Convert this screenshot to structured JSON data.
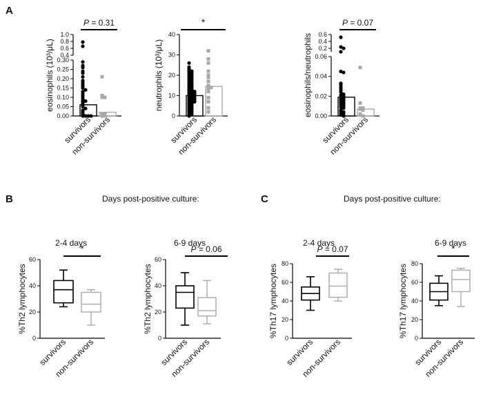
{
  "panels": {
    "A": "A",
    "B": "B",
    "C": "C"
  },
  "headers": {
    "B": "Days post-positive culture:",
    "C": "Days post-positive culture:"
  },
  "colors": {
    "survivors": "#000000",
    "non_survivors": "#a8a8a8"
  },
  "chart_data": [
    {
      "id": "A1",
      "type": "bar",
      "title": "",
      "ylabel": "eosinophils (10³/μL)",
      "significance": {
        "prefix": "P",
        "text": " = 0.31"
      },
      "categories": [
        "survivors",
        "non-survivors"
      ],
      "bar_means": [
        0.06,
        0.02
      ],
      "axis_segments": [
        {
          "ylim": [
            0,
            0.3
          ],
          "ticks": [
            "0.00",
            "0.05",
            "0.10",
            "0.15",
            "0.20",
            "0.25",
            "0.30"
          ]
        },
        {
          "ylim": [
            0.4,
            1.0
          ],
          "ticks": [
            "0.4",
            "0.6",
            "0.8",
            "1.0"
          ]
        }
      ],
      "points": {
        "survivors": [
          0.78,
          0.66,
          0.29,
          0.27,
          0.26,
          0.24,
          0.23,
          0.21,
          0.19,
          0.18,
          0.17,
          0.16,
          0.15,
          0.14,
          0.13,
          0.12,
          0.11,
          0.1,
          0.09,
          0.08,
          0.08,
          0.07,
          0.06,
          0.05,
          0.04,
          0.03,
          0.02,
          0.01,
          0.0,
          0.0,
          0.0,
          0.0
        ],
        "non-survivors": [
          0.21,
          0.11,
          0.1,
          0.1,
          0.01,
          0.01,
          0.0,
          0.0
        ]
      }
    },
    {
      "id": "A2",
      "type": "bar",
      "title": "",
      "ylabel": "neutrophils (10³/μL)",
      "significance": {
        "prefix": "",
        "text": "*"
      },
      "categories": [
        "survivors",
        "non-survivors"
      ],
      "bar_means": [
        10,
        14.5
      ],
      "ylim": [
        0,
        40
      ],
      "ticks": [
        "0",
        "10",
        "20",
        "30",
        "40"
      ],
      "points": {
        "survivors": [
          26,
          24,
          23,
          22,
          22,
          21,
          21,
          20,
          20,
          19,
          19,
          18,
          18,
          17,
          17,
          16,
          16,
          15,
          15,
          14,
          14,
          13,
          13,
          12,
          12,
          12,
          11,
          11,
          11,
          10,
          10,
          10,
          9,
          9,
          9,
          8,
          8,
          8,
          7,
          7,
          7,
          6,
          6,
          5,
          5,
          4,
          4,
          3,
          3,
          2,
          2,
          1,
          1,
          0
        ],
        "non-survivors": [
          32,
          28,
          26,
          22,
          20,
          19,
          17,
          15,
          14,
          14,
          13,
          12,
          9,
          7,
          4,
          2
        ]
      }
    },
    {
      "id": "A3",
      "type": "bar",
      "title": "",
      "ylabel": "eosinophils/neutrophils",
      "significance": {
        "prefix": "P",
        "text": " = 0.07"
      },
      "categories": [
        "survivors",
        "non-survivors"
      ],
      "bar_means": [
        0.019,
        0.007
      ],
      "axis_segments": [
        {
          "ylim": [
            0,
            0.06
          ],
          "ticks": [
            "0.00",
            "0.02",
            "0.04",
            "0.06"
          ]
        },
        {
          "ylim": [
            0.1,
            0.6
          ],
          "ticks": [
            "0.2",
            "0.4",
            "0.6"
          ]
        }
      ],
      "points": {
        "survivors": [
          0.52,
          0.24,
          0.2,
          0.061,
          0.045,
          0.044,
          0.033,
          0.032,
          0.03,
          0.028,
          0.026,
          0.024,
          0.022,
          0.021,
          0.02,
          0.019,
          0.018,
          0.017,
          0.016,
          0.015,
          0.014,
          0.013,
          0.012,
          0.011,
          0.01,
          0.009,
          0.008,
          0.006,
          0.005,
          0.004,
          0.003,
          0.002,
          0.001,
          0.0
        ],
        "non-survivors": [
          0.049,
          0.013,
          0.008,
          0.008,
          0.007,
          0.006,
          0.002,
          0.001,
          0.0
        ]
      }
    },
    {
      "id": "B1",
      "type": "box",
      "title": "2-4 days",
      "ylabel": "%Th2 lymphocytes",
      "significance": {
        "prefix": "",
        "text": "*"
      },
      "categories": [
        "survivors",
        "non-survivors"
      ],
      "ylim": [
        0,
        60
      ],
      "ticks": [
        "0",
        "20",
        "40",
        "60"
      ],
      "boxes": [
        {
          "name": "survivors",
          "min": 24,
          "q1": 27,
          "median": 37,
          "q3": 44,
          "max": 52
        },
        {
          "name": "non-survivors",
          "min": 10,
          "q1": 20,
          "median": 26,
          "q3": 35,
          "max": 37
        }
      ]
    },
    {
      "id": "B2",
      "type": "box",
      "title": "6-9 days",
      "ylabel": "%Th2 lymphocytes",
      "significance": {
        "prefix": "P",
        "text": " = 0.06"
      },
      "categories": [
        "survivors",
        "non-survivors"
      ],
      "ylim": [
        0,
        60
      ],
      "ticks": [
        "0",
        "20",
        "40",
        "60"
      ],
      "boxes": [
        {
          "name": "survivors",
          "min": 10,
          "q1": 23,
          "median": 35,
          "q3": 40,
          "max": 50
        },
        {
          "name": "non-survivors",
          "min": 11,
          "q1": 17,
          "median": 21,
          "q3": 31,
          "max": 44
        }
      ]
    },
    {
      "id": "C1",
      "type": "box",
      "title": "2-4 days",
      "ylabel": "%Th17 lymphocytes",
      "significance": {
        "prefix": "P",
        "text": " = 0.07"
      },
      "categories": [
        "survivors",
        "non-survivors"
      ],
      "ylim": [
        0,
        80
      ],
      "ticks": [
        "0",
        "20",
        "40",
        "60",
        "80"
      ],
      "boxes": [
        {
          "name": "survivors",
          "min": 30,
          "q1": 41,
          "median": 48,
          "q3": 55,
          "max": 66
        },
        {
          "name": "non-survivors",
          "min": 40,
          "q1": 44,
          "median": 56,
          "q3": 70,
          "max": 74
        }
      ]
    },
    {
      "id": "C2",
      "type": "box",
      "title": "6-9 days",
      "ylabel": "%Th17 lymphocytes",
      "significance": {
        "prefix": "",
        "text": "*"
      },
      "categories": [
        "survivors",
        "non-survivors"
      ],
      "ylim": [
        0,
        80
      ],
      "ticks": [
        "0",
        "20",
        "40",
        "60",
        "80"
      ],
      "boxes": [
        {
          "name": "survivors",
          "min": 35,
          "q1": 41,
          "median": 50,
          "q3": 59,
          "max": 67
        },
        {
          "name": "non-survivors",
          "min": 34,
          "q1": 50,
          "median": 63,
          "q3": 73,
          "max": 75
        }
      ]
    }
  ]
}
